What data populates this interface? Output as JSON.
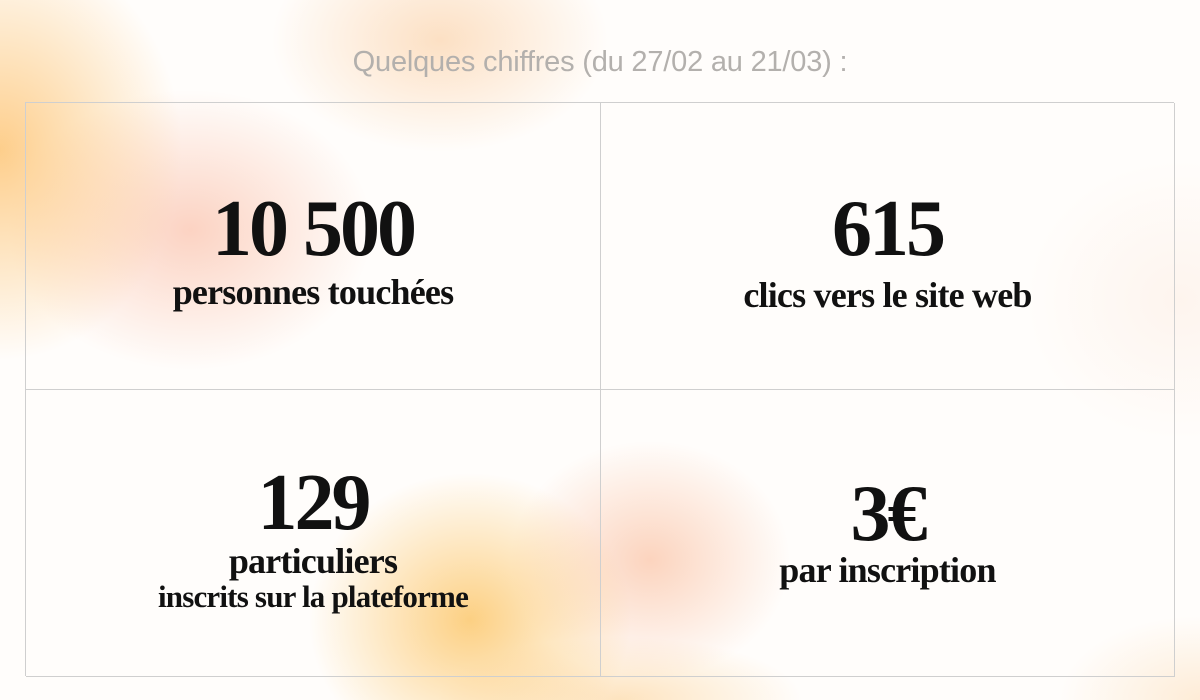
{
  "heading": "Quelques chiffres (du 27/02 au 21/03) :",
  "stats": [
    {
      "value": "10 500",
      "label": "personnes touchées"
    },
    {
      "value": "615",
      "label": "clics vers le site web"
    },
    {
      "value": "129",
      "label": "particuliers",
      "sublabel": "inscrits sur la plateforme"
    },
    {
      "value": "3€",
      "label": "par inscription"
    }
  ],
  "colors": {
    "text": "#111111",
    "heading": "#b3b0ad",
    "grid_lines": "#cfcfcf",
    "accent_orange": "#fdc678",
    "accent_peach": "#f9b094"
  }
}
